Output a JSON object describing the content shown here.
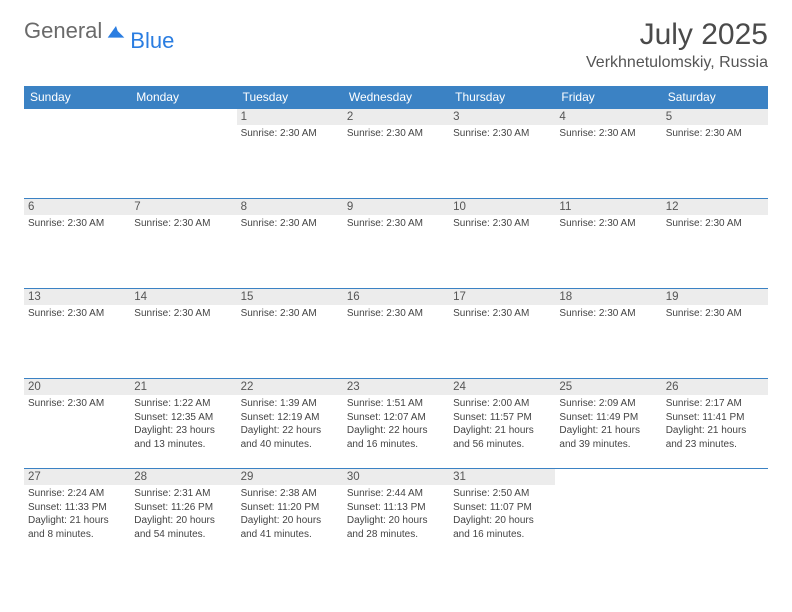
{
  "brand": {
    "general": "General",
    "blue": "Blue"
  },
  "title": "July 2025",
  "location": "Verkhnetulomskiy, Russia",
  "colors": {
    "header_bg": "#3b82c4",
    "header_text": "#ffffff",
    "daynum_bg": "#ececec",
    "border": "#3b82c4",
    "title_color": "#4a4a4a"
  },
  "layout": {
    "rows": 5,
    "cols": 7
  },
  "days": [
    "Sunday",
    "Monday",
    "Tuesday",
    "Wednesday",
    "Thursday",
    "Friday",
    "Saturday"
  ],
  "cells": [
    {
      "n": "",
      "t": ""
    },
    {
      "n": "",
      "t": ""
    },
    {
      "n": "1",
      "t": "Sunrise: 2:30 AM"
    },
    {
      "n": "2",
      "t": "Sunrise: 2:30 AM"
    },
    {
      "n": "3",
      "t": "Sunrise: 2:30 AM"
    },
    {
      "n": "4",
      "t": "Sunrise: 2:30 AM"
    },
    {
      "n": "5",
      "t": "Sunrise: 2:30 AM"
    },
    {
      "n": "6",
      "t": "Sunrise: 2:30 AM"
    },
    {
      "n": "7",
      "t": "Sunrise: 2:30 AM"
    },
    {
      "n": "8",
      "t": "Sunrise: 2:30 AM"
    },
    {
      "n": "9",
      "t": "Sunrise: 2:30 AM"
    },
    {
      "n": "10",
      "t": "Sunrise: 2:30 AM"
    },
    {
      "n": "11",
      "t": "Sunrise: 2:30 AM"
    },
    {
      "n": "12",
      "t": "Sunrise: 2:30 AM"
    },
    {
      "n": "13",
      "t": "Sunrise: 2:30 AM"
    },
    {
      "n": "14",
      "t": "Sunrise: 2:30 AM"
    },
    {
      "n": "15",
      "t": "Sunrise: 2:30 AM"
    },
    {
      "n": "16",
      "t": "Sunrise: 2:30 AM"
    },
    {
      "n": "17",
      "t": "Sunrise: 2:30 AM"
    },
    {
      "n": "18",
      "t": "Sunrise: 2:30 AM"
    },
    {
      "n": "19",
      "t": "Sunrise: 2:30 AM"
    },
    {
      "n": "20",
      "t": "Sunrise: 2:30 AM"
    },
    {
      "n": "21",
      "t": "Sunrise: 1:22 AM\nSunset: 12:35 AM\nDaylight: 23 hours and 13 minutes."
    },
    {
      "n": "22",
      "t": "Sunrise: 1:39 AM\nSunset: 12:19 AM\nDaylight: 22 hours and 40 minutes."
    },
    {
      "n": "23",
      "t": "Sunrise: 1:51 AM\nSunset: 12:07 AM\nDaylight: 22 hours and 16 minutes."
    },
    {
      "n": "24",
      "t": "Sunrise: 2:00 AM\nSunset: 11:57 PM\nDaylight: 21 hours and 56 minutes."
    },
    {
      "n": "25",
      "t": "Sunrise: 2:09 AM\nSunset: 11:49 PM\nDaylight: 21 hours and 39 minutes."
    },
    {
      "n": "26",
      "t": "Sunrise: 2:17 AM\nSunset: 11:41 PM\nDaylight: 21 hours and 23 minutes."
    },
    {
      "n": "27",
      "t": "Sunrise: 2:24 AM\nSunset: 11:33 PM\nDaylight: 21 hours and 8 minutes."
    },
    {
      "n": "28",
      "t": "Sunrise: 2:31 AM\nSunset: 11:26 PM\nDaylight: 20 hours and 54 minutes."
    },
    {
      "n": "29",
      "t": "Sunrise: 2:38 AM\nSunset: 11:20 PM\nDaylight: 20 hours and 41 minutes."
    },
    {
      "n": "30",
      "t": "Sunrise: 2:44 AM\nSunset: 11:13 PM\nDaylight: 20 hours and 28 minutes."
    },
    {
      "n": "31",
      "t": "Sunrise: 2:50 AM\nSunset: 11:07 PM\nDaylight: 20 hours and 16 minutes."
    },
    {
      "n": "",
      "t": ""
    },
    {
      "n": "",
      "t": ""
    }
  ]
}
